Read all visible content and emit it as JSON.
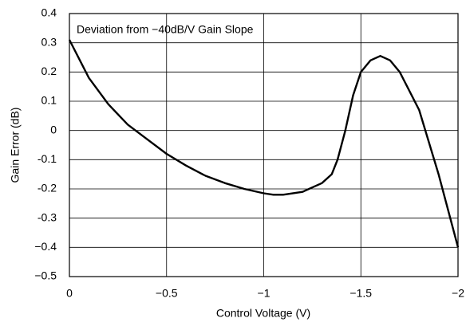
{
  "chart_data": {
    "type": "line",
    "annotation": "Deviation from −40dB/V Gain Slope",
    "x_label": "Control Voltage (V)",
    "y_label": "Gain Error (dB)",
    "x": [
      0,
      -0.1,
      -0.2,
      -0.3,
      -0.4,
      -0.5,
      -0.6,
      -0.7,
      -0.8,
      -0.9,
      -1.0,
      -1.05,
      -1.1,
      -1.2,
      -1.3,
      -1.35,
      -1.38,
      -1.42,
      -1.46,
      -1.5,
      -1.55,
      -1.6,
      -1.65,
      -1.7,
      -1.8,
      -1.9,
      -2.0
    ],
    "values": [
      0.31,
      0.18,
      0.09,
      0.02,
      -0.03,
      -0.08,
      -0.12,
      -0.155,
      -0.18,
      -0.2,
      -0.215,
      -0.22,
      -0.22,
      -0.21,
      -0.18,
      -0.15,
      -0.1,
      0.0,
      0.12,
      0.2,
      0.24,
      0.255,
      0.24,
      0.2,
      0.07,
      -0.15,
      -0.4
    ],
    "color": "#000000",
    "xlim": [
      0,
      -2
    ],
    "xticks": [
      0,
      {
        "value": -0.5,
        "label": "−0.5"
      },
      {
        "value": -1,
        "label": "−1"
      },
      {
        "value": -1.5,
        "label": "−1.5"
      },
      {
        "value": -2,
        "label": "−2"
      }
    ],
    "ylim": [
      -0.5,
      0.4
    ],
    "yticks": [
      0.4,
      0.3,
      0.2,
      0.1,
      0,
      -0.1,
      -0.2,
      -0.3,
      {
        "value": -0.4,
        "label": "−0.4"
      },
      {
        "value": -0.5,
        "label": "−0.5"
      }
    ],
    "grid": true
  }
}
